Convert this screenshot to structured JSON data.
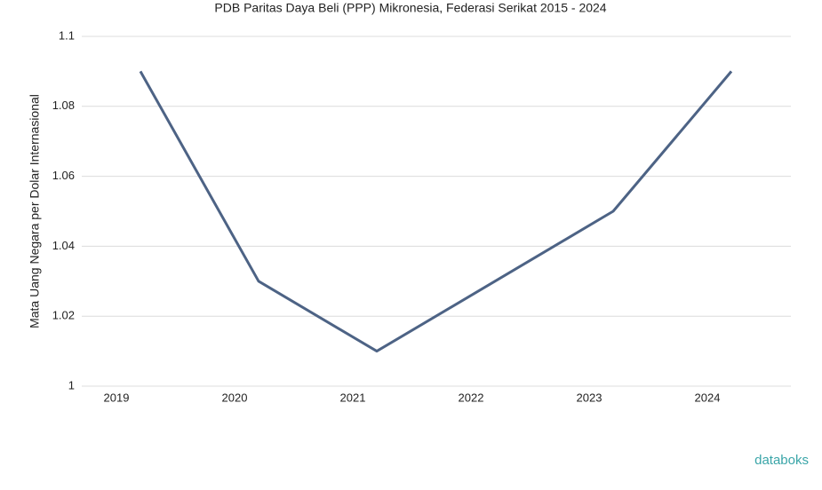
{
  "chart_data": {
    "type": "line",
    "title": "PDB Paritas Daya Beli (PPP) Mikronesia, Federasi Serikat 2015 - 2024",
    "y_label": "Mata Uang Negara per Dolar Internasional",
    "categories": [
      "2019",
      "2020",
      "2021",
      "2022",
      "2023",
      "2024"
    ],
    "series": [
      {
        "name": "PPP",
        "color": "#4d6385",
        "values": [
          1.09,
          1.03,
          1.01,
          1.03,
          1.05,
          1.09
        ]
      }
    ],
    "ylim": [
      1,
      1.1
    ],
    "yticks": [
      1,
      1.02,
      1.04,
      1.06,
      1.08,
      1.1
    ],
    "grid": true,
    "watermark": "databoks"
  }
}
